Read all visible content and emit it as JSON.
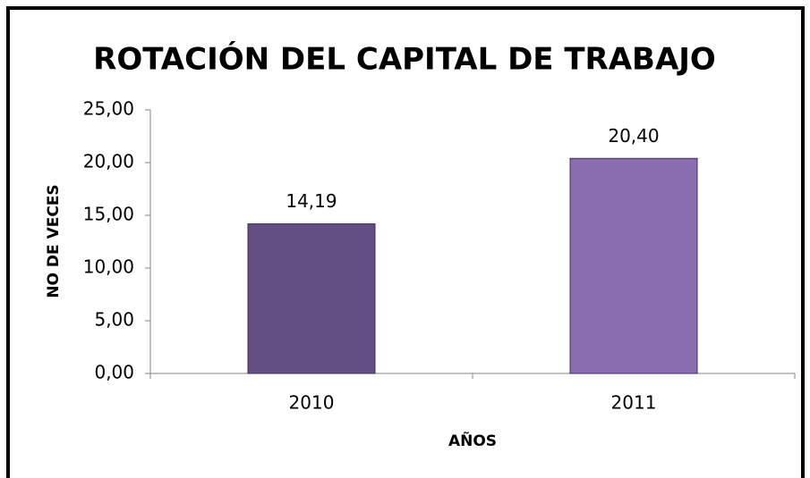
{
  "chart_data": {
    "type": "bar",
    "title": "ROTACIÓN DEL CAPITAL DE TRABAJO",
    "x_label": "AÑOS",
    "y_label": "NO DE  VECES",
    "categories": [
      "2010",
      "2011"
    ],
    "values": [
      14.19,
      20.4
    ],
    "value_labels": [
      "14,19",
      "20,40"
    ],
    "colors": [
      "#644f85",
      "#8a6db0"
    ],
    "ylim": [
      0,
      25
    ],
    "yticks": [
      {
        "value": 0,
        "label": "0,00"
      },
      {
        "value": 5,
        "label": "5,00"
      },
      {
        "value": 10,
        "label": "10,00"
      },
      {
        "value": 15,
        "label": "15,00"
      },
      {
        "value": 20,
        "label": "20,00"
      },
      {
        "value": 25,
        "label": "25,00"
      }
    ],
    "grid": false
  }
}
